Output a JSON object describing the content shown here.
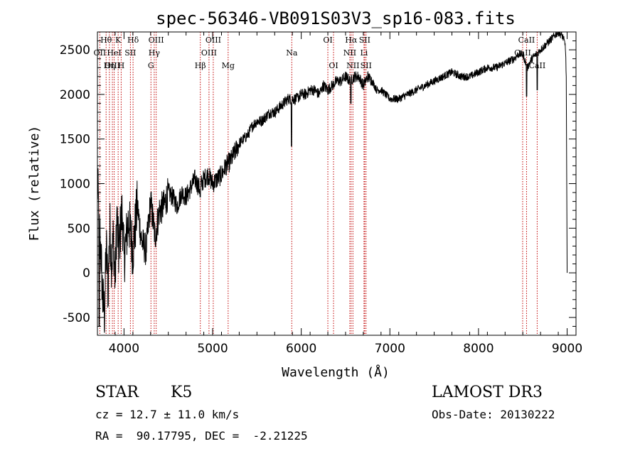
{
  "chart_data": {
    "type": "line",
    "title": "spec-56346-VB091S03V3_sp16-083.fits",
    "xlabel": "Wavelength (Å)",
    "ylabel": "Flux (relative)",
    "xlim": [
      3700,
      9100
    ],
    "ylim": [
      -700,
      2700
    ],
    "xticks": [
      4000,
      5000,
      6000,
      7000,
      8000,
      9000
    ],
    "yticks": [
      -500,
      0,
      500,
      1000,
      1500,
      2000,
      2500
    ],
    "series": [
      {
        "name": "flux",
        "x": [
          3700,
          3720,
          3740,
          3760,
          3780,
          3800,
          3820,
          3840,
          3860,
          3880,
          3900,
          3920,
          3940,
          3960,
          3980,
          4000,
          4050,
          4100,
          4150,
          4200,
          4250,
          4300,
          4350,
          4400,
          4450,
          4500,
          4550,
          4600,
          4650,
          4700,
          4750,
          4800,
          4850,
          4900,
          4950,
          5000,
          5050,
          5100,
          5150,
          5200,
          5250,
          5300,
          5350,
          5400,
          5450,
          5500,
          5550,
          5600,
          5650,
          5700,
          5750,
          5800,
          5850,
          5900,
          5950,
          6000,
          6050,
          6100,
          6150,
          6200,
          6250,
          6300,
          6350,
          6400,
          6450,
          6500,
          6550,
          6600,
          6650,
          6700,
          6750,
          6800,
          6850,
          6900,
          6950,
          7000,
          7100,
          7200,
          7300,
          7400,
          7500,
          7600,
          7700,
          7800,
          7900,
          8000,
          8100,
          8200,
          8300,
          8400,
          8450,
          8500,
          8550,
          8600,
          8650,
          8700,
          8750,
          8800,
          8850,
          8900,
          8950,
          8980,
          8990,
          9000
        ],
        "values": [
          1000,
          600,
          200,
          -300,
          -450,
          300,
          -200,
          550,
          100,
          400,
          -100,
          650,
          200,
          500,
          700,
          150,
          600,
          250,
          750,
          350,
          250,
          800,
          400,
          700,
          750,
          900,
          850,
          750,
          900,
          850,
          950,
          1050,
          950,
          1050,
          1100,
          1000,
          1050,
          1100,
          1200,
          1250,
          1350,
          1450,
          1500,
          1550,
          1650,
          1700,
          1700,
          1750,
          1800,
          1800,
          1850,
          1900,
          1950,
          1950,
          1950,
          2000,
          2000,
          2050,
          2050,
          2000,
          2100,
          2050,
          2100,
          2150,
          2150,
          2200,
          2150,
          2200,
          2200,
          2100,
          2200,
          2150,
          2050,
          2050,
          2000,
          1950,
          1950,
          2000,
          2050,
          2100,
          2150,
          2200,
          2250,
          2200,
          2200,
          2250,
          2300,
          2300,
          2350,
          2400,
          2450,
          2450,
          2300,
          2400,
          2450,
          2500,
          2550,
          2600,
          2650,
          2700,
          2650,
          2550,
          2200,
          0
        ],
        "absorption_dips": [
          {
            "x": 4860,
            "value": 850
          },
          {
            "x": 5890,
            "value": 1420
          },
          {
            "x": 6560,
            "value": 1900
          },
          {
            "x": 8542,
            "value": 1980
          },
          {
            "x": 8662,
            "value": 2050
          },
          {
            "x": 3720,
            "value": -600
          }
        ]
      }
    ],
    "spectral_lines": [
      {
        "label": "Hθ",
        "x": 3798,
        "row": 0
      },
      {
        "label": "OII",
        "x": 3727,
        "row": 1
      },
      {
        "label": "OIII",
        "x": 3869,
        "row": 2
      },
      {
        "label": "K",
        "x": 3934,
        "row": 0
      },
      {
        "label": "HeI",
        "x": 3889,
        "row": 1
      },
      {
        "label": "Hη",
        "x": 3835,
        "row": 2
      },
      {
        "label": "SII",
        "x": 4072,
        "row": 1
      },
      {
        "label": "H",
        "x": 3968,
        "row": 2
      },
      {
        "label": "Hδ",
        "x": 4102,
        "row": 0
      },
      {
        "label": "OIII",
        "x": 4363,
        "row": 0
      },
      {
        "label": "Hγ",
        "x": 4341,
        "row": 1
      },
      {
        "label": "G",
        "x": 4304,
        "row": 2
      },
      {
        "label": "Hβ",
        "x": 4861,
        "row": 2
      },
      {
        "label": "OIII",
        "x": 5007,
        "row": 0
      },
      {
        "label": "OIII",
        "x": 4959,
        "row": 1
      },
      {
        "label": "Mg",
        "x": 5175,
        "row": 2
      },
      {
        "label": "Na",
        "x": 5893,
        "row": 1
      },
      {
        "label": "OI",
        "x": 6300,
        "row": 0
      },
      {
        "label": "OI",
        "x": 6364,
        "row": 2
      },
      {
        "label": "Hα",
        "x": 6563,
        "row": 0
      },
      {
        "label": "SII",
        "x": 6716,
        "row": 0
      },
      {
        "label": "NII",
        "x": 6548,
        "row": 1
      },
      {
        "label": "Li",
        "x": 6708,
        "row": 1
      },
      {
        "label": "NII",
        "x": 6583,
        "row": 2
      },
      {
        "label": "SII",
        "x": 6731,
        "row": 2
      },
      {
        "label": "CaII",
        "x": 8542,
        "row": 0
      },
      {
        "label": "CaII",
        "x": 8498,
        "row": 1
      },
      {
        "label": "CaII",
        "x": 8662,
        "row": 2
      }
    ],
    "line_color": "#000000",
    "marker_color": "#c00000"
  },
  "info": {
    "class": "STAR",
    "subclass": "K5",
    "cz": "cz = 12.7 ± 11.0 km/s",
    "coords": "RA =  90.17795, DEC =  -2.21225",
    "survey": "LAMOST DR3",
    "obs_date": "Obs-Date: 20130222"
  }
}
